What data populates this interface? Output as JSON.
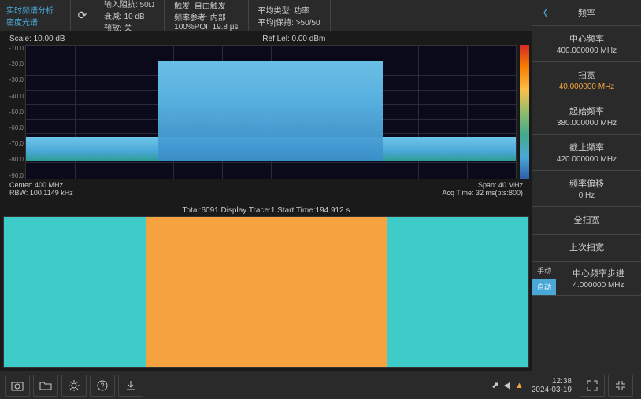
{
  "mode": {
    "line1": "实时频谱分析",
    "line2": "密度光谱"
  },
  "infoBar": {
    "group1": {
      "impedance": "输入阻抗: 50Ω",
      "atten": "衰减: 10 dB",
      "preamp": "预放: 关"
    },
    "group2": {
      "trigger": "触发: 自由触发",
      "freqRef": "频率参考: 内部",
      "poi": "100%POI: 19.8 μs"
    },
    "group3": {
      "avgType": "平均类型: 功率",
      "hold": "平均|保持: >50/50"
    }
  },
  "spectrum": {
    "scaleLabel": "Scale: 10.00 dB",
    "refLabel": "Ref Lel: 0.00 dBm",
    "yTicks": [
      "-10.0",
      "-20.0",
      "-30.0",
      "-40.0",
      "-50.0",
      "-60.0",
      "-70.0",
      "-80.0",
      "-90.0"
    ],
    "centerLabel": "Center: 400 MHz",
    "rbwLabel": "RBW: 100.1149 kHz",
    "spanLabel": "Span: 40 MHz",
    "acqLabel": "Acq Time: 32 ms(pts:800)"
  },
  "waterfall": {
    "header": "Total:6091    Display Trace:1    Start Time:194.912 s"
  },
  "rightPanel": {
    "title": "频率",
    "items": [
      {
        "label": "中心频率",
        "value": "400.000000 MHz"
      },
      {
        "label": "扫宽",
        "value": "40.000000 MHz",
        "active": true
      },
      {
        "label": "起始频率",
        "value": "380.000000 MHz"
      },
      {
        "label": "截止频率",
        "value": "420.000000 MHz"
      },
      {
        "label": "频率偏移",
        "value": "0 Hz"
      },
      {
        "label": "全扫宽",
        "value": ""
      },
      {
        "label": "上次扫宽",
        "value": ""
      }
    ],
    "stepTabs": {
      "manual": "手动",
      "auto": "自动"
    },
    "stepLabel": "中心频率步进",
    "stepValue": "4.000000 MHz"
  },
  "bottomBar": {
    "time": "12:38",
    "date": "2024-03-19"
  }
}
